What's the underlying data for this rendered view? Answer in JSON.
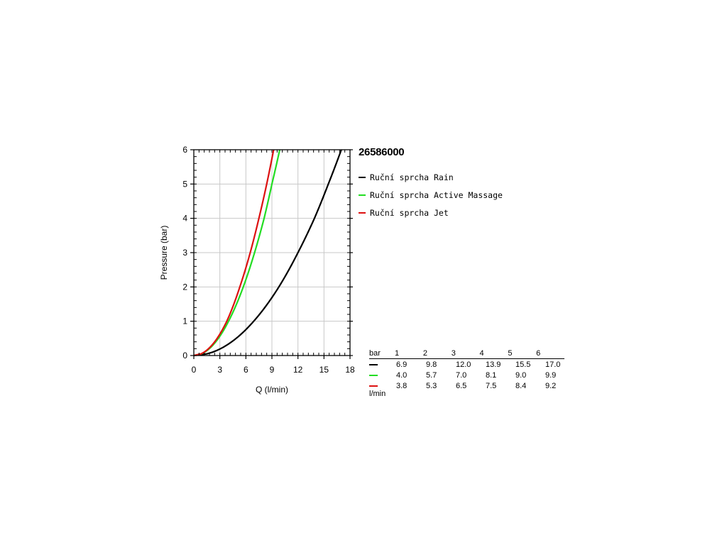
{
  "chart_data": {
    "type": "line",
    "title": "26586000",
    "xlabel": "Q (l/min)",
    "ylabel": "Pressure (bar)",
    "xlim": [
      0,
      18
    ],
    "ylim": [
      0,
      6
    ],
    "x_ticks": [
      "0",
      "3",
      "6",
      "9",
      "12",
      "15",
      "18"
    ],
    "y_ticks": [
      "0",
      "1",
      "2",
      "3",
      "4",
      "5",
      "6"
    ],
    "grid": true,
    "legend_position": "right",
    "series": [
      {
        "name": "Ruční sprcha Rain",
        "color": "#000000",
        "points": [
          [
            0,
            0
          ],
          [
            6.9,
            1
          ],
          [
            9.8,
            2
          ],
          [
            12.0,
            3
          ],
          [
            13.9,
            4
          ],
          [
            15.5,
            5
          ],
          [
            17.0,
            6
          ]
        ]
      },
      {
        "name": "Ruční sprcha Active Massage",
        "color": "#22dd22",
        "points": [
          [
            0,
            0
          ],
          [
            4.0,
            1
          ],
          [
            5.7,
            2
          ],
          [
            7.0,
            3
          ],
          [
            8.1,
            4
          ],
          [
            9.0,
            5
          ],
          [
            9.9,
            6
          ]
        ]
      },
      {
        "name": "Ruční sprcha Jet",
        "color": "#dd1111",
        "points": [
          [
            0,
            0
          ],
          [
            3.8,
            1
          ],
          [
            5.3,
            2
          ],
          [
            6.5,
            3
          ],
          [
            7.5,
            4
          ],
          [
            8.4,
            5
          ],
          [
            9.2,
            6
          ]
        ]
      }
    ],
    "table": {
      "header_label": "bar",
      "unit_label": "l/min",
      "pressures": [
        "1",
        "2",
        "3",
        "4",
        "5",
        "6"
      ],
      "rows": [
        {
          "color": "#000000",
          "values": [
            "6.9",
            "9.8",
            "12.0",
            "13.9",
            "15.5",
            "17.0"
          ]
        },
        {
          "color": "#22dd22",
          "values": [
            "4.0",
            "5.7",
            "7.0",
            "8.1",
            "9.0",
            "9.9"
          ]
        },
        {
          "color": "#dd1111",
          "values": [
            "3.8",
            "5.3",
            "6.5",
            "7.5",
            "8.4",
            "9.2"
          ]
        }
      ]
    }
  }
}
